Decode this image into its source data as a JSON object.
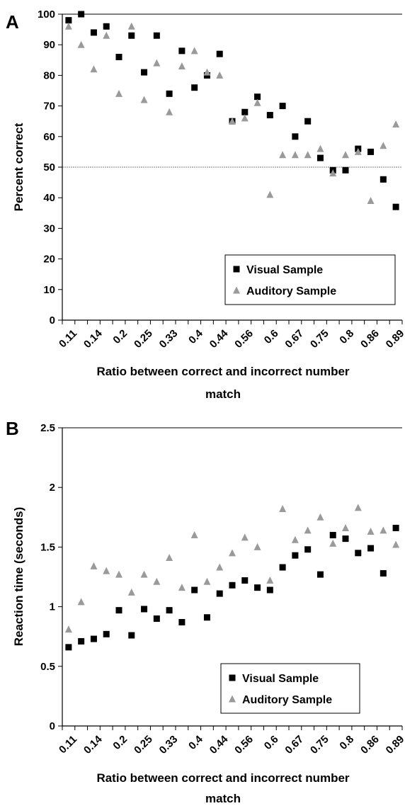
{
  "chart_data": [
    {
      "type": "scatter",
      "panel_label": "A",
      "xlabel": "Ratio between correct and incorrect number match",
      "ylabel": "Percent correct",
      "ylim": [
        0,
        100
      ],
      "yticks": [
        "0",
        "10",
        "20",
        "30",
        "40",
        "50",
        "60",
        "70",
        "80",
        "90",
        "100"
      ],
      "x_tick_labels": [
        "0.11",
        "0.14",
        "0.2",
        "0.25",
        "0.33",
        "0.4",
        "0.44",
        "0.56",
        "0.6",
        "0.67",
        "0.75",
        "0.8",
        "0.86",
        "0.89"
      ],
      "reference_line": 50,
      "legend_position": "bottom-right",
      "series": [
        {
          "name": "Visual Sample",
          "color": "#000000",
          "marker": "square",
          "values": [
            98,
            100,
            94,
            96,
            86,
            93,
            81,
            93,
            74,
            88,
            76,
            80,
            87,
            65,
            68,
            73,
            67,
            70,
            60,
            65,
            53,
            49,
            49,
            56,
            55,
            46,
            37
          ]
        },
        {
          "name": "Auditory Sample",
          "color": "#9a9a9a",
          "marker": "triangle",
          "values": [
            96,
            90,
            82,
            93,
            74,
            96,
            72,
            84,
            68,
            83,
            88,
            81,
            80,
            65,
            66,
            71,
            41,
            54,
            54,
            54,
            56,
            48,
            54,
            55,
            39,
            57,
            64
          ]
        }
      ]
    },
    {
      "type": "scatter",
      "panel_label": "B",
      "xlabel": "Ratio between correct and incorrect number match",
      "ylabel": "Reaction time (seconds)",
      "ylim": [
        0,
        2.5
      ],
      "yticks": [
        "0",
        "0.5",
        "1",
        "1.5",
        "2",
        "2.5"
      ],
      "x_tick_labels": [
        "0.11",
        "0.14",
        "0.2",
        "0.25",
        "0.33",
        "0.4",
        "0.44",
        "0.56",
        "0.6",
        "0.67",
        "0.75",
        "0.8",
        "0.86",
        "0.89"
      ],
      "legend_position": "bottom-right",
      "series": [
        {
          "name": "Visual Sample",
          "color": "#000000",
          "marker": "square",
          "values": [
            0.66,
            0.71,
            0.73,
            0.77,
            0.97,
            0.76,
            0.98,
            0.9,
            0.97,
            0.87,
            1.14,
            0.91,
            1.11,
            1.18,
            1.22,
            1.16,
            1.14,
            1.33,
            1.43,
            1.48,
            1.27,
            1.6,
            1.57,
            1.45,
            1.49,
            1.28,
            1.66
          ]
        },
        {
          "name": "Auditory Sample",
          "color": "#9a9a9a",
          "marker": "triangle",
          "values": [
            0.81,
            1.04,
            1.34,
            1.3,
            1.27,
            1.12,
            1.27,
            1.21,
            1.41,
            1.16,
            1.6,
            1.21,
            1.33,
            1.45,
            1.58,
            1.5,
            1.22,
            1.82,
            1.56,
            1.64,
            1.75,
            1.53,
            1.66,
            1.83,
            1.63,
            1.64,
            1.52
          ]
        }
      ]
    }
  ]
}
